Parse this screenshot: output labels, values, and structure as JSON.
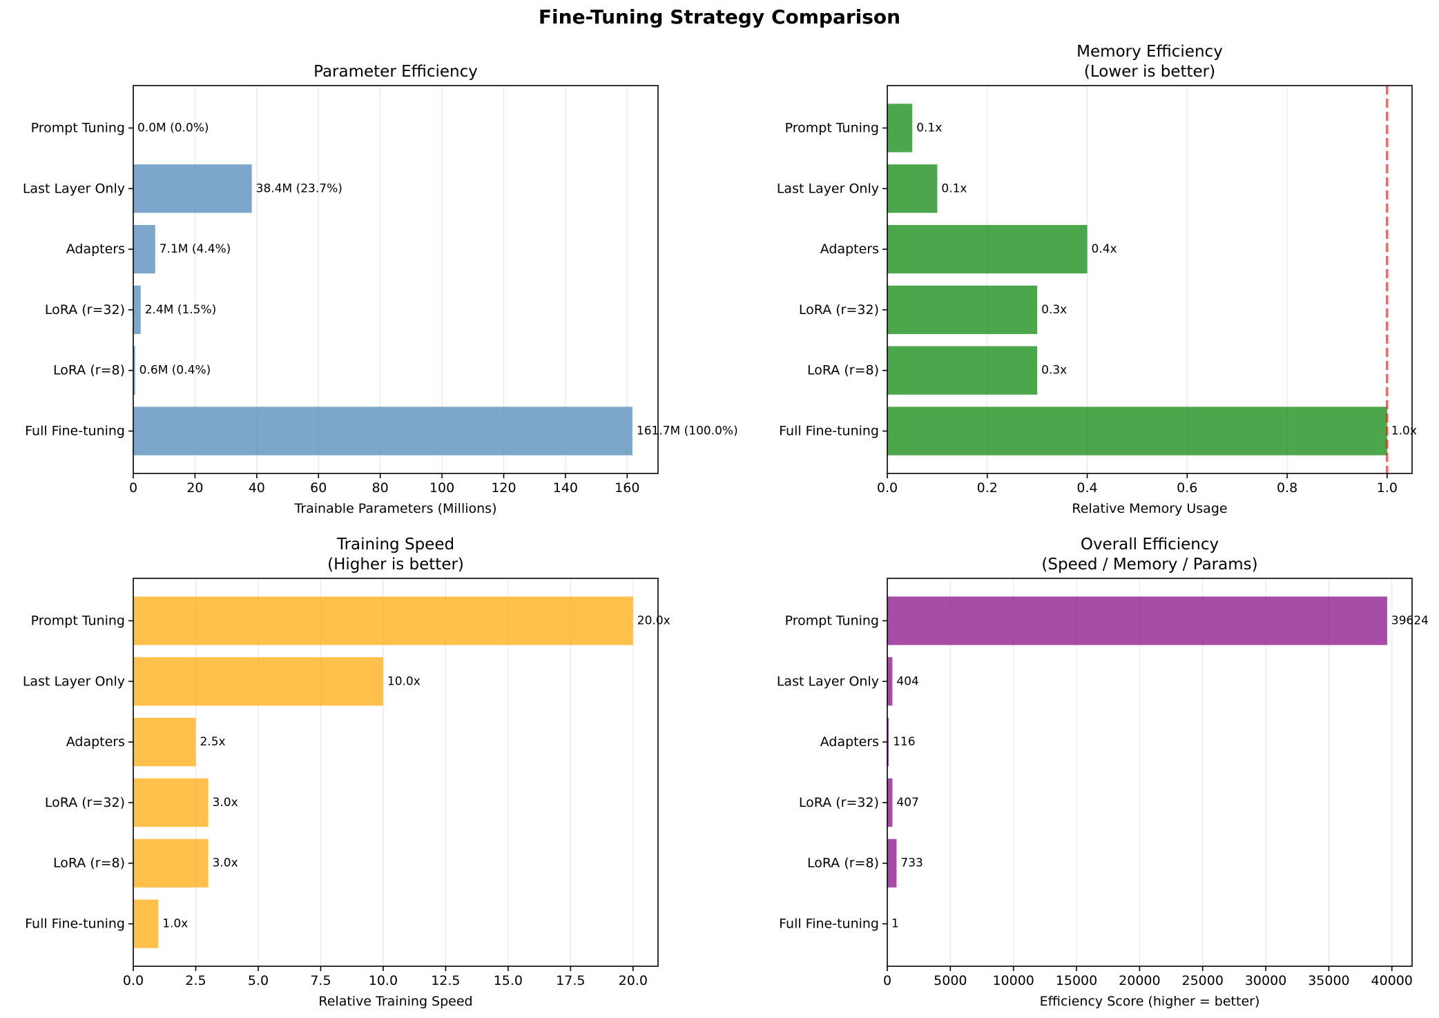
{
  "figure": {
    "title": "Fine-Tuning Strategy Comparison"
  },
  "chart_data": [
    {
      "type": "bar",
      "orientation": "horizontal",
      "title": "Parameter Efficiency",
      "subtitle": "",
      "xlabel": "Trainable Parameters (Millions)",
      "categories": [
        "Full Fine-tuning",
        "LoRA (r=8)",
        "LoRA (r=32)",
        "Adapters",
        "Last Layer Only",
        "Prompt Tuning"
      ],
      "values": [
        161.7,
        0.6,
        2.4,
        7.1,
        38.4,
        0.0
      ],
      "data_labels": [
        "161.7M (100.0%)",
        "0.6M (0.4%)",
        "2.4M (1.5%)",
        "7.1M (4.4%)",
        "38.4M (23.7%)",
        "0.0M (0.0%)"
      ],
      "xlim": [
        0,
        170
      ],
      "xticks": [
        0,
        20,
        40,
        60,
        80,
        100,
        120,
        140,
        160
      ],
      "xtick_labels": [
        "0",
        "20",
        "40",
        "60",
        "80",
        "100",
        "120",
        "140",
        "160"
      ],
      "color": "#4682b4",
      "grid": "x",
      "reference_line": null
    },
    {
      "type": "bar",
      "orientation": "horizontal",
      "title": "Memory Efficiency",
      "subtitle": "(Lower is better)",
      "xlabel": "Relative Memory Usage",
      "categories": [
        "Full Fine-tuning",
        "LoRA (r=8)",
        "LoRA (r=32)",
        "Adapters",
        "Last Layer Only",
        "Prompt Tuning"
      ],
      "values": [
        1.0,
        0.3,
        0.3,
        0.4,
        0.1,
        0.05
      ],
      "data_labels": [
        "1.0x",
        "0.3x",
        "0.3x",
        "0.4x",
        "0.1x",
        "0.1x"
      ],
      "xlim": [
        0,
        1.05
      ],
      "xticks": [
        0,
        0.2,
        0.4,
        0.6,
        0.8,
        1.0
      ],
      "xtick_labels": [
        "0.0",
        "0.2",
        "0.4",
        "0.6",
        "0.8",
        "1.0"
      ],
      "color": "#008000",
      "grid": "x",
      "reference_line": {
        "x": 1.0,
        "color": "#ff0000",
        "style": "dashed"
      }
    },
    {
      "type": "bar",
      "orientation": "horizontal",
      "title": "Training Speed",
      "subtitle": "(Higher is better)",
      "xlabel": "Relative Training Speed",
      "categories": [
        "Full Fine-tuning",
        "LoRA (r=8)",
        "LoRA (r=32)",
        "Adapters",
        "Last Layer Only",
        "Prompt Tuning"
      ],
      "values": [
        1.0,
        3.0,
        3.0,
        2.5,
        10.0,
        20.0
      ],
      "data_labels": [
        "1.0x",
        "3.0x",
        "3.0x",
        "2.5x",
        "10.0x",
        "20.0x"
      ],
      "xlim": [
        0,
        21
      ],
      "xticks": [
        0,
        2.5,
        5,
        7.5,
        10,
        12.5,
        15,
        17.5,
        20
      ],
      "xtick_labels": [
        "0.0",
        "2.5",
        "5.0",
        "7.5",
        "10.0",
        "12.5",
        "15.0",
        "17.5",
        "20.0"
      ],
      "color": "#ffa500",
      "grid": "x",
      "reference_line": null
    },
    {
      "type": "bar",
      "orientation": "horizontal",
      "title": "Overall Efficiency",
      "subtitle": "(Speed / Memory / Params)",
      "xlabel": "Efficiency Score (higher = better)",
      "categories": [
        "Full Fine-tuning",
        "LoRA (r=8)",
        "LoRA (r=32)",
        "Adapters",
        "Last Layer Only",
        "Prompt Tuning"
      ],
      "values": [
        1,
        733,
        407,
        116,
        404,
        39624
      ],
      "data_labels": [
        "1",
        "733",
        "407",
        "116",
        "404",
        "39624"
      ],
      "xlim": [
        0,
        41600
      ],
      "xticks": [
        0,
        5000,
        10000,
        15000,
        20000,
        25000,
        30000,
        35000,
        40000
      ],
      "xtick_labels": [
        "0",
        "5000",
        "10000",
        "15000",
        "20000",
        "25000",
        "30000",
        "35000",
        "40000"
      ],
      "color": "#800080",
      "grid": "x",
      "reference_line": null
    }
  ]
}
